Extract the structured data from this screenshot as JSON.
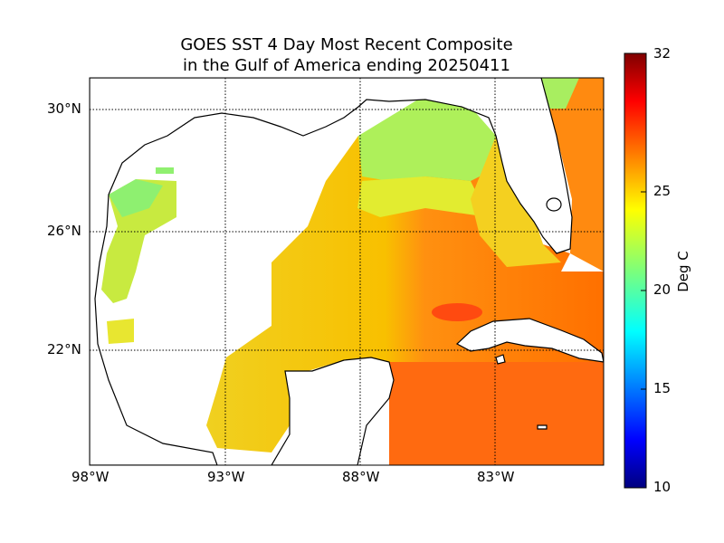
{
  "map": {
    "title_line1": "GOES SST 4 Day Most Recent Composite",
    "title_line2": "in the Gulf of America ending 20250411",
    "lat_ticks": [
      "30°N",
      "26°N",
      "22°N"
    ],
    "lon_ticks": [
      "98°W",
      "93°W",
      "88°W",
      "83°W"
    ],
    "colorbar": {
      "label": "Deg C",
      "ticks": [
        "32",
        "25",
        "20",
        "15",
        "10"
      ],
      "min": 10,
      "max": 32,
      "colormap": "jet"
    },
    "colors": {
      "land": "#ffffff",
      "coastline": "#000000",
      "gridline": "#000000"
    }
  }
}
